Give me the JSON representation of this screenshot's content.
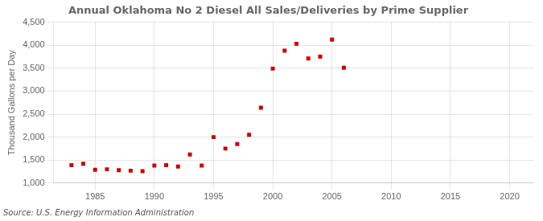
{
  "chart_data": {
    "type": "scatter",
    "title": "Annual Oklahoma No 2 Diesel All Sales/Deliveries by Prime Supplier",
    "ylabel": "Thousand Gallons per Day",
    "source": "Source: U.S. Energy Information Administration",
    "x": [
      1983,
      1984,
      1985,
      1986,
      1987,
      1988,
      1989,
      1990,
      1991,
      1992,
      1993,
      1994,
      1995,
      1996,
      1997,
      1998,
      1999,
      2000,
      2001,
      2002,
      2003,
      2004,
      2005,
      2006
    ],
    "values": [
      1390,
      1420,
      1290,
      1300,
      1280,
      1270,
      1260,
      1380,
      1390,
      1360,
      1620,
      1380,
      2000,
      1750,
      1850,
      2050,
      2640,
      3490,
      3880,
      4030,
      3710,
      3750,
      4120,
      3510
    ],
    "color": "#cc0000",
    "marker": "square",
    "xlim": [
      1981.5,
      2022
    ],
    "xticks": [
      1985,
      1990,
      1995,
      2000,
      2005,
      2010,
      2015,
      2020
    ],
    "ylim": [
      1000,
      4500
    ],
    "yticks": [
      {
        "value": 1000,
        "label": "1,000"
      },
      {
        "value": 1500,
        "label": "1,500"
      },
      {
        "value": 2000,
        "label": "2,000"
      },
      {
        "value": 2500,
        "label": "2,500"
      },
      {
        "value": 3000,
        "label": "3,000"
      },
      {
        "value": 3500,
        "label": "3,500"
      },
      {
        "value": 4000,
        "label": "4,000"
      },
      {
        "value": 4500,
        "label": "4,500"
      }
    ],
    "grid": true
  }
}
